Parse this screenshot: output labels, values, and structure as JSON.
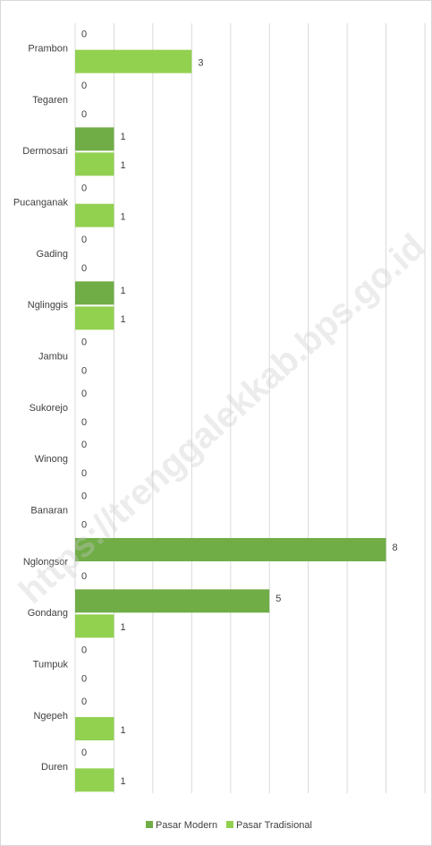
{
  "chart_data": {
    "type": "hbar",
    "categories": [
      "Prambon",
      "Tegaren",
      "Dermosari",
      "Pucanganak",
      "Gading",
      "Nglinggis",
      "Jambu",
      "Sukorejo",
      "Winong",
      "Banaran",
      "Nglongsor",
      "Gondang",
      "Tumpuk",
      "Ngepeh",
      "Duren"
    ],
    "series": [
      {
        "name": "Pasar Modern",
        "color": "#70ad47",
        "values": [
          0,
          0,
          1,
          0,
          0,
          1,
          0,
          0,
          0,
          0,
          8,
          5,
          0,
          0,
          0
        ]
      },
      {
        "name": "Pasar Tradisional",
        "color": "#92d050",
        "values": [
          3,
          0,
          1,
          1,
          0,
          1,
          0,
          0,
          0,
          0,
          0,
          1,
          0,
          1,
          1
        ]
      }
    ],
    "xlim": [
      0,
      9
    ],
    "xticks": [
      0,
      1,
      2,
      3,
      4,
      5,
      6,
      7,
      8,
      9
    ],
    "grid": true,
    "legend": "bottom",
    "watermark": "https://trenggalekkab.bps.go.id"
  }
}
